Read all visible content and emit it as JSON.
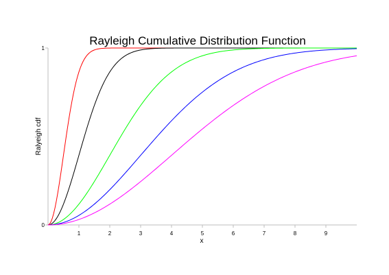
{
  "chart_data": {
    "type": "line",
    "title": "Rayleigh Cumulative Distribution Function",
    "xlabel": "x",
    "ylabel": "Ralyeigh cdf",
    "xlim": [
      0,
      10
    ],
    "ylim": [
      0,
      1
    ],
    "x_ticks": [
      "0",
      "1",
      "2",
      "3",
      "4",
      "5",
      "6",
      "7",
      "8",
      "9"
    ],
    "y_ticks": [
      "0",
      "1"
    ],
    "grid": false,
    "legend": "none",
    "series": [
      {
        "color": "#ff0000",
        "sigma": 0.5,
        "x": [
          0,
          0.25,
          0.5,
          0.75,
          1,
          1.25,
          1.5,
          2,
          3,
          10
        ],
        "y": [
          0,
          0.1175,
          0.3935,
          0.6753,
          0.8647,
          0.9561,
          0.9889,
          0.9997,
          1.0,
          1.0
        ]
      },
      {
        "color": "#000000",
        "sigma": 1,
        "x": [
          0,
          0.5,
          1,
          1.5,
          2,
          2.5,
          3,
          4,
          10
        ],
        "y": [
          0,
          0.1175,
          0.3935,
          0.6753,
          0.8647,
          0.9561,
          0.9889,
          0.9997,
          1.0
        ]
      },
      {
        "color": "#00ff00",
        "sigma": 2,
        "x": [
          0,
          1,
          2,
          3,
          4,
          5,
          6,
          7,
          8,
          10
        ],
        "y": [
          0,
          0.1175,
          0.3935,
          0.6753,
          0.8647,
          0.9561,
          0.9889,
          0.9978,
          0.9997,
          1.0
        ]
      },
      {
        "color": "#0000ff",
        "sigma": 3,
        "x": [
          0,
          1,
          2,
          3,
          4,
          5,
          6,
          7,
          8,
          9,
          10
        ],
        "y": [
          0,
          0.054,
          0.1993,
          0.3935,
          0.5889,
          0.7506,
          0.8647,
          0.9344,
          0.9715,
          0.9889,
          0.9961
        ]
      },
      {
        "color": "#ff00ff",
        "sigma": 4,
        "x": [
          0,
          1,
          2,
          3,
          4,
          5,
          6,
          7,
          8,
          9,
          10
        ],
        "y": [
          0,
          0.0308,
          0.1175,
          0.2452,
          0.3935,
          0.5422,
          0.6753,
          0.7835,
          0.8647,
          0.9205,
          0.9561
        ]
      }
    ]
  }
}
